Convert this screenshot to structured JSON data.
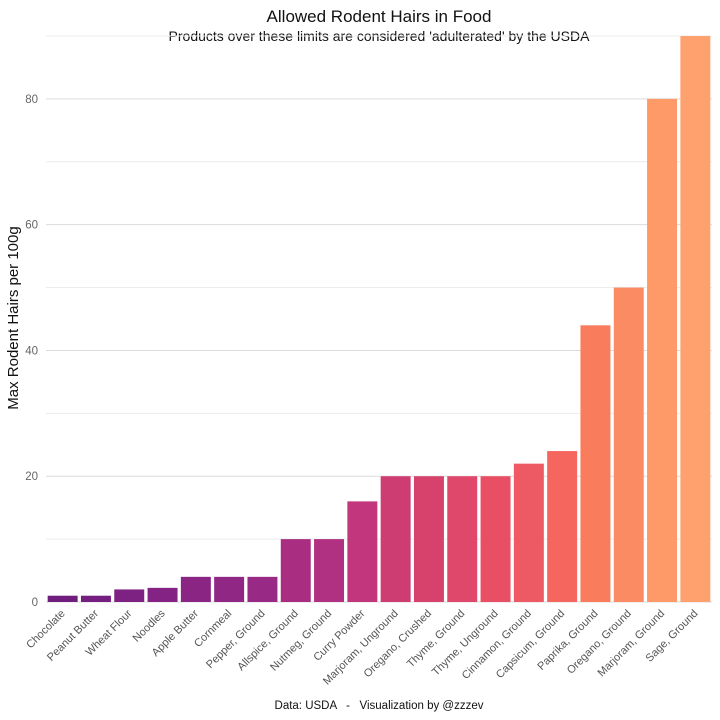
{
  "chart_data": {
    "type": "bar",
    "title": "Allowed Rodent Hairs in Food",
    "subtitle": "Products over these limits are considered 'adulterated' by the USDA",
    "xlabel": "",
    "ylabel": "Max Rodent Hairs per 100g",
    "caption": "Data: USDA   -   Visualization by @zzzev",
    "ylim": [
      0,
      90
    ],
    "yticks": [
      0,
      20,
      40,
      60,
      80
    ],
    "grid": true,
    "legend": "none",
    "categories": [
      "Chocolate",
      "Peanut Butter",
      "Wheat Flour",
      "Noodles",
      "Apple Butter",
      "Cornmeal",
      "Pepper, Ground",
      "Allspice, Ground",
      "Nutmeg, Ground",
      "Curry Powder",
      "Marjoram, Unground",
      "Oregano, Crushed",
      "Thyme, Ground",
      "Thyme, Unground",
      "Cinnamon, Ground",
      "Capsicum, Ground",
      "Paprika, Ground",
      "Oregano, Ground",
      "Marjoram, Ground",
      "Sage, Ground"
    ],
    "values": [
      1,
      1,
      2,
      2.25,
      4,
      4,
      4,
      10,
      10,
      16,
      20,
      20,
      20,
      20,
      22,
      24,
      44,
      50,
      80,
      90
    ],
    "colors": [
      "#701e7e",
      "#751f80",
      "#7d2182",
      "#842383",
      "#8a2584",
      "#912785",
      "#982a85",
      "#a92e82",
      "#b03081",
      "#c1367d",
      "#cd3d72",
      "#d7426d",
      "#e0486b",
      "#e94f64",
      "#ee5a63",
      "#f4665e",
      "#f97d5d",
      "#fb8b63",
      "#fd9a68",
      "#ffa16f"
    ]
  }
}
